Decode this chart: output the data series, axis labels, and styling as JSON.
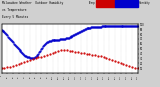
{
  "title": "Milwaukee Weather  Outdoor Humidity",
  "subtitle": "vs Temperature",
  "subtitle2": "Every 5 Minutes",
  "bg_color": "#d0d0d0",
  "plot_bg_color": "#ffffff",
  "grid_color": "#b0b0b0",
  "blue_color": "#0000cc",
  "red_color": "#cc0000",
  "legend_red_label": "Temp",
  "legend_blue_label": "Humidity",
  "ylim": [
    0,
    100
  ],
  "xlim": [
    0,
    288
  ],
  "blue_x": [
    0,
    2,
    4,
    6,
    8,
    10,
    12,
    14,
    16,
    18,
    20,
    22,
    24,
    26,
    28,
    30,
    32,
    34,
    36,
    38,
    40,
    42,
    44,
    46,
    48,
    50,
    52,
    54,
    56,
    58,
    60,
    62,
    64,
    66,
    68,
    70,
    72,
    74,
    76,
    78,
    80,
    82,
    84,
    86,
    88,
    90,
    92,
    94,
    96,
    98,
    100,
    102,
    104,
    106,
    108,
    110,
    112,
    114,
    116,
    118,
    120,
    122,
    124,
    126,
    128,
    130,
    132,
    134,
    136,
    138,
    140,
    142,
    144,
    146,
    148,
    150,
    152,
    154,
    156,
    158,
    160,
    162,
    164,
    166,
    168,
    170,
    172,
    174,
    176,
    178,
    180,
    182,
    184,
    186,
    188,
    190,
    192,
    194,
    196,
    198,
    200,
    202,
    204,
    206,
    208,
    210,
    212,
    214,
    216,
    218,
    220,
    222,
    224,
    226,
    228,
    230,
    232,
    234,
    236,
    238,
    240,
    242,
    244,
    246,
    248,
    250,
    252,
    254,
    256,
    258,
    260,
    262,
    264,
    266,
    268,
    270,
    272,
    274,
    276,
    278,
    280,
    282,
    284,
    286,
    288
  ],
  "blue_y": [
    88,
    87,
    86,
    84,
    82,
    80,
    78,
    75,
    73,
    70,
    68,
    65,
    63,
    60,
    58,
    56,
    54,
    52,
    50,
    48,
    46,
    44,
    42,
    40,
    38,
    36,
    35,
    34,
    33,
    32,
    31,
    30,
    30,
    30,
    31,
    32,
    33,
    35,
    37,
    40,
    43,
    46,
    49,
    52,
    55,
    58,
    60,
    62,
    63,
    64,
    65,
    66,
    66,
    67,
    67,
    68,
    68,
    68,
    68,
    68,
    68,
    68,
    69,
    69,
    70,
    70,
    70,
    70,
    71,
    71,
    72,
    73,
    74,
    75,
    76,
    77,
    78,
    79,
    80,
    81,
    82,
    83,
    84,
    85,
    86,
    87,
    88,
    89,
    90,
    91,
    92,
    92,
    93,
    93,
    93,
    94,
    94,
    94,
    95,
    95,
    95,
    95,
    95,
    95,
    95,
    95,
    96,
    96,
    96,
    96,
    96,
    96,
    96,
    97,
    97,
    97,
    97,
    97,
    97,
    97,
    97,
    97,
    97,
    97,
    97,
    97,
    97,
    97,
    97,
    97,
    97,
    97,
    97,
    97,
    97,
    97,
    97,
    97,
    97,
    97,
    97,
    97,
    97,
    97,
    97
  ],
  "red_x": [
    0,
    6,
    12,
    18,
    24,
    30,
    36,
    42,
    48,
    54,
    60,
    66,
    72,
    78,
    84,
    90,
    96,
    102,
    108,
    114,
    120,
    126,
    132,
    138,
    144,
    150,
    156,
    162,
    168,
    174,
    180,
    186,
    192,
    198,
    204,
    210,
    216,
    222,
    228,
    234,
    240,
    246,
    252,
    258,
    264,
    270,
    276,
    282,
    288
  ],
  "red_y": [
    10,
    11,
    12,
    13,
    14,
    16,
    18,
    20,
    22,
    24,
    26,
    28,
    30,
    32,
    34,
    36,
    38,
    40,
    42,
    44,
    46,
    47,
    48,
    47,
    46,
    45,
    44,
    43,
    42,
    41,
    40,
    39,
    38,
    37,
    36,
    35,
    33,
    31,
    29,
    27,
    25,
    23,
    21,
    19,
    17,
    15,
    13,
    11,
    10
  ]
}
